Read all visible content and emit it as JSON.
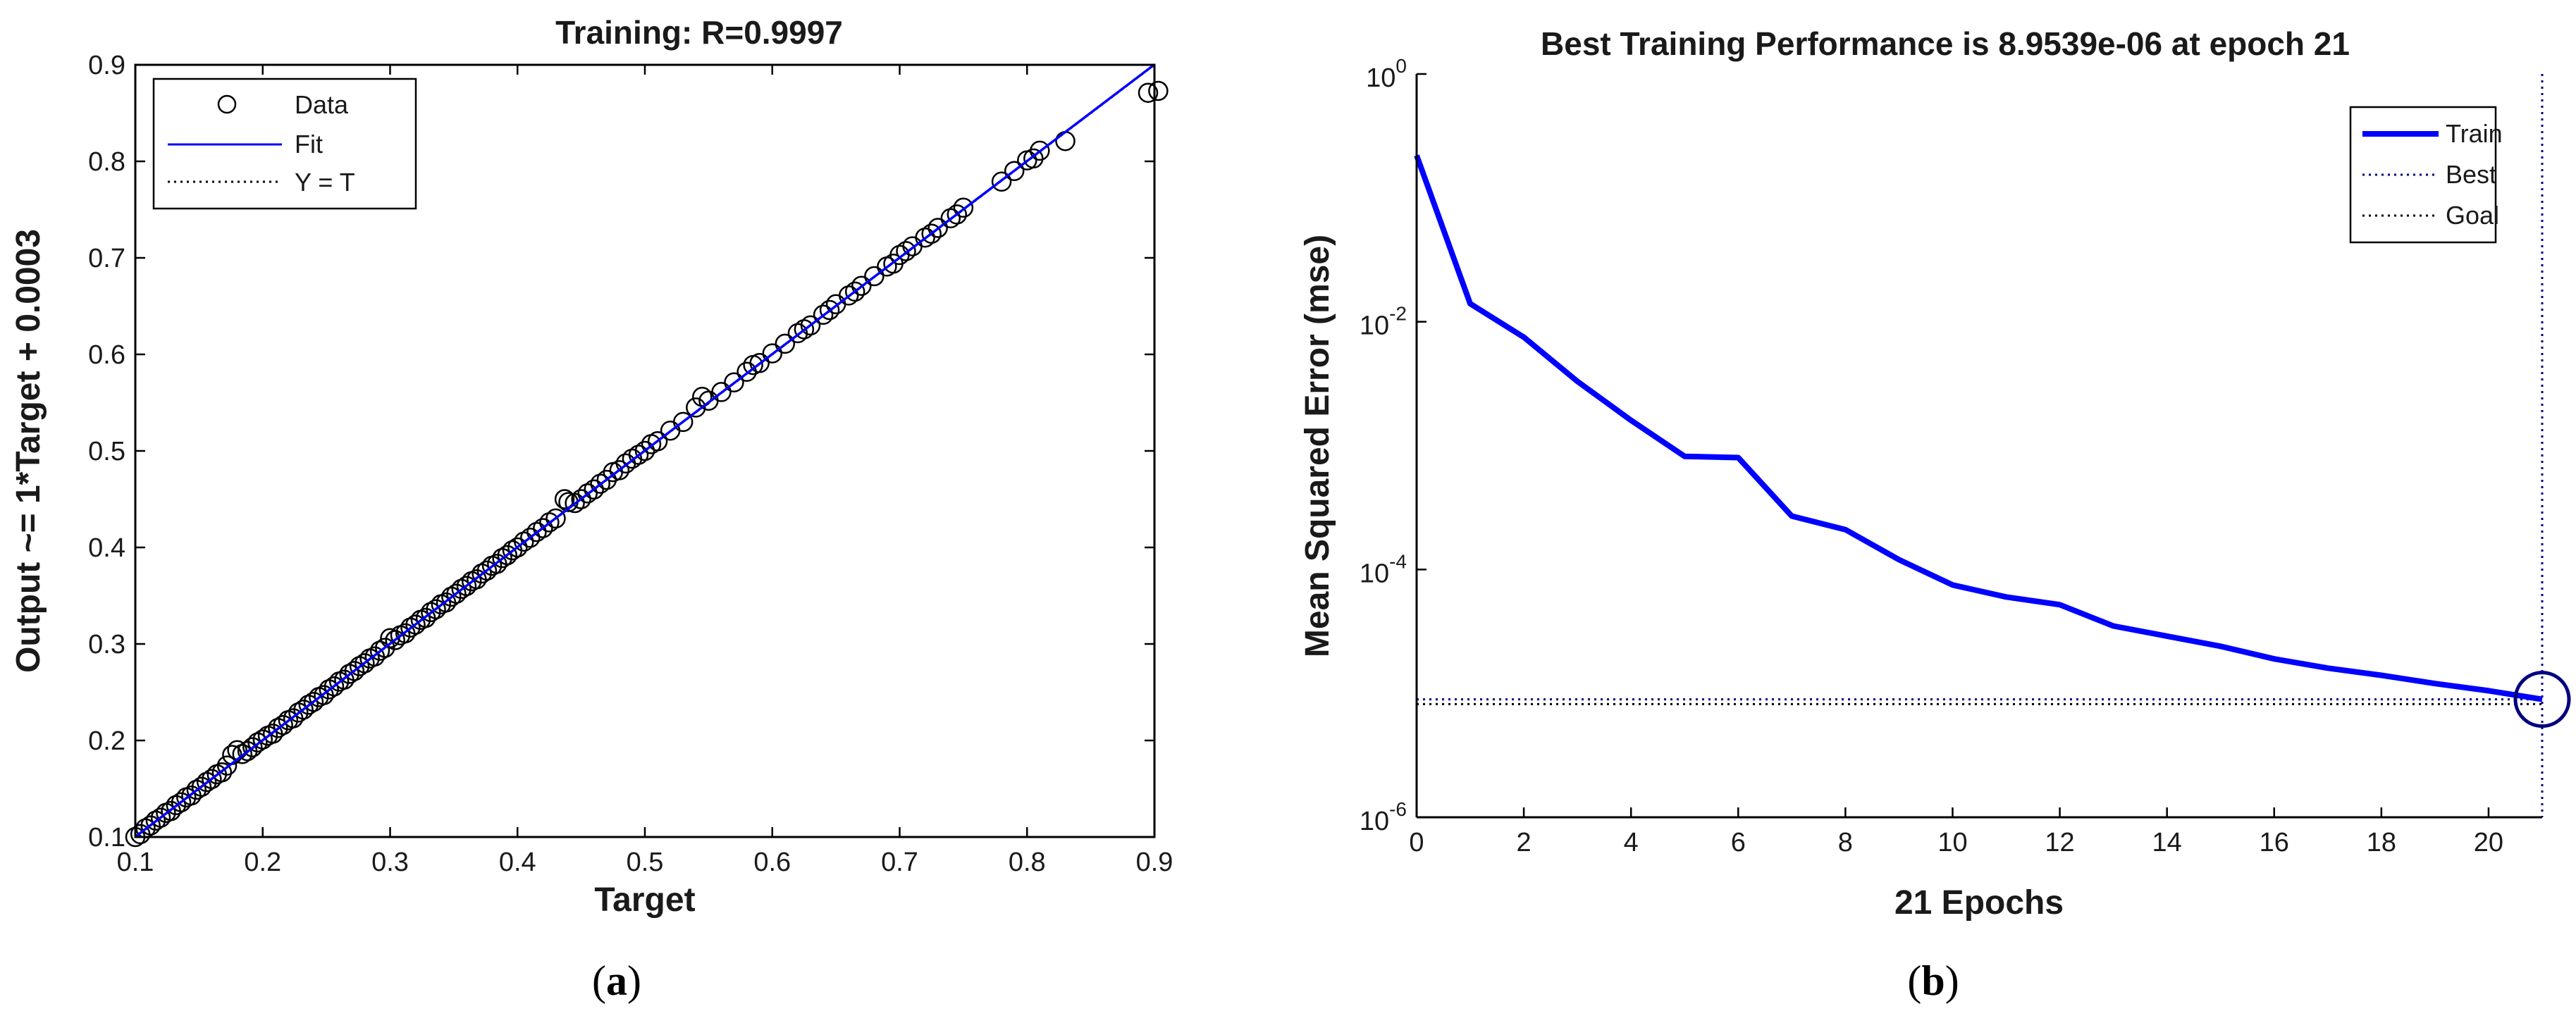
{
  "chart_data": [
    {
      "type": "scatter",
      "title": "Training: R=0.9997",
      "xlabel": "Target",
      "ylabel": "Output ~= 1*Target + 0.0003",
      "xlim": [
        0.1,
        0.9
      ],
      "ylim": [
        0.1,
        0.9
      ],
      "xticks": [
        "0.1",
        "0.2",
        "0.3",
        "0.4",
        "0.5",
        "0.6",
        "0.7",
        "0.8",
        "0.9"
      ],
      "yticks": [
        "0.1",
        "0.2",
        "0.3",
        "0.4",
        "0.5",
        "0.6",
        "0.7",
        "0.8",
        "0.9"
      ],
      "grid": false,
      "legend_position": "top-left",
      "legend": [
        "Data",
        "Fit",
        "Y = T"
      ],
      "fit": {
        "slope": 1,
        "intercept": 0.0003
      },
      "colors": {
        "data": "#000000",
        "fit": "#0000ff",
        "ident": "#000000"
      },
      "data_points": [
        [
          0.1,
          0.1
        ],
        [
          0.104,
          0.103
        ],
        [
          0.108,
          0.109
        ],
        [
          0.112,
          0.112
        ],
        [
          0.116,
          0.117
        ],
        [
          0.12,
          0.12
        ],
        [
          0.124,
          0.125
        ],
        [
          0.128,
          0.127
        ],
        [
          0.132,
          0.133
        ],
        [
          0.136,
          0.136
        ],
        [
          0.14,
          0.141
        ],
        [
          0.144,
          0.143
        ],
        [
          0.148,
          0.149
        ],
        [
          0.152,
          0.152
        ],
        [
          0.156,
          0.157
        ],
        [
          0.16,
          0.16
        ],
        [
          0.164,
          0.165
        ],
        [
          0.168,
          0.167
        ],
        [
          0.172,
          0.174
        ],
        [
          0.176,
          0.185
        ],
        [
          0.18,
          0.19
        ],
        [
          0.184,
          0.186
        ],
        [
          0.188,
          0.189
        ],
        [
          0.192,
          0.193
        ],
        [
          0.196,
          0.198
        ],
        [
          0.2,
          0.201
        ],
        [
          0.204,
          0.205
        ],
        [
          0.208,
          0.207
        ],
        [
          0.212,
          0.213
        ],
        [
          0.216,
          0.216
        ],
        [
          0.22,
          0.221
        ],
        [
          0.224,
          0.223
        ],
        [
          0.228,
          0.229
        ],
        [
          0.232,
          0.232
        ],
        [
          0.236,
          0.237
        ],
        [
          0.24,
          0.24
        ],
        [
          0.244,
          0.245
        ],
        [
          0.248,
          0.247
        ],
        [
          0.252,
          0.253
        ],
        [
          0.256,
          0.256
        ],
        [
          0.26,
          0.261
        ],
        [
          0.264,
          0.263
        ],
        [
          0.268,
          0.269
        ],
        [
          0.272,
          0.272
        ],
        [
          0.276,
          0.277
        ],
        [
          0.28,
          0.28
        ],
        [
          0.284,
          0.285
        ],
        [
          0.288,
          0.287
        ],
        [
          0.292,
          0.293
        ],
        [
          0.296,
          0.296
        ],
        [
          0.3,
          0.306
        ],
        [
          0.304,
          0.304
        ],
        [
          0.308,
          0.309
        ],
        [
          0.312,
          0.311
        ],
        [
          0.316,
          0.317
        ],
        [
          0.32,
          0.32
        ],
        [
          0.324,
          0.325
        ],
        [
          0.328,
          0.327
        ],
        [
          0.332,
          0.333
        ],
        [
          0.336,
          0.336
        ],
        [
          0.34,
          0.341
        ],
        [
          0.344,
          0.343
        ],
        [
          0.348,
          0.349
        ],
        [
          0.352,
          0.352
        ],
        [
          0.356,
          0.357
        ],
        [
          0.36,
          0.36
        ],
        [
          0.364,
          0.365
        ],
        [
          0.368,
          0.367
        ],
        [
          0.372,
          0.373
        ],
        [
          0.376,
          0.376
        ],
        [
          0.38,
          0.381
        ],
        [
          0.384,
          0.383
        ],
        [
          0.388,
          0.389
        ],
        [
          0.392,
          0.392
        ],
        [
          0.396,
          0.397
        ],
        [
          0.4,
          0.4
        ],
        [
          0.405,
          0.406
        ],
        [
          0.41,
          0.41
        ],
        [
          0.415,
          0.416
        ],
        [
          0.42,
          0.42
        ],
        [
          0.425,
          0.426
        ],
        [
          0.43,
          0.43
        ],
        [
          0.437,
          0.45
        ],
        [
          0.44,
          0.447
        ],
        [
          0.445,
          0.446
        ],
        [
          0.45,
          0.45
        ],
        [
          0.455,
          0.456
        ],
        [
          0.46,
          0.46
        ],
        [
          0.465,
          0.466
        ],
        [
          0.47,
          0.47
        ],
        [
          0.475,
          0.478
        ],
        [
          0.48,
          0.48
        ],
        [
          0.485,
          0.487
        ],
        [
          0.49,
          0.492
        ],
        [
          0.495,
          0.496
        ],
        [
          0.5,
          0.5
        ],
        [
          0.505,
          0.507
        ],
        [
          0.51,
          0.51
        ],
        [
          0.52,
          0.521
        ],
        [
          0.53,
          0.53
        ],
        [
          0.54,
          0.545
        ],
        [
          0.545,
          0.556
        ],
        [
          0.55,
          0.552
        ],
        [
          0.56,
          0.561
        ],
        [
          0.57,
          0.571
        ],
        [
          0.58,
          0.582
        ],
        [
          0.585,
          0.589
        ],
        [
          0.59,
          0.591
        ],
        [
          0.6,
          0.601
        ],
        [
          0.61,
          0.611
        ],
        [
          0.62,
          0.622
        ],
        [
          0.625,
          0.626
        ],
        [
          0.63,
          0.63
        ],
        [
          0.64,
          0.641
        ],
        [
          0.645,
          0.646
        ],
        [
          0.65,
          0.652
        ],
        [
          0.66,
          0.661
        ],
        [
          0.665,
          0.665
        ],
        [
          0.67,
          0.671
        ],
        [
          0.68,
          0.681
        ],
        [
          0.69,
          0.691
        ],
        [
          0.695,
          0.694
        ],
        [
          0.7,
          0.703
        ],
        [
          0.705,
          0.707
        ],
        [
          0.71,
          0.712
        ],
        [
          0.72,
          0.721
        ],
        [
          0.725,
          0.725
        ],
        [
          0.73,
          0.731
        ],
        [
          0.74,
          0.741
        ],
        [
          0.745,
          0.745
        ],
        [
          0.75,
          0.752
        ],
        [
          0.78,
          0.779
        ],
        [
          0.79,
          0.79
        ],
        [
          0.8,
          0.801
        ],
        [
          0.805,
          0.803
        ],
        [
          0.81,
          0.811
        ],
        [
          0.83,
          0.821
        ],
        [
          0.895,
          0.871
        ],
        [
          0.903,
          0.873
        ]
      ]
    },
    {
      "type": "line",
      "title": "Best Training Performance is 8.9539e-06 at epoch 21",
      "xlabel": "21 Epochs",
      "ylabel": "Mean Squared Error  (mse)",
      "xlim": [
        0,
        21
      ],
      "ylim": [
        1e-06,
        1
      ],
      "yscale": "log",
      "xticks": [
        "0",
        "2",
        "4",
        "6",
        "8",
        "10",
        "12",
        "14",
        "16",
        "18",
        "20"
      ],
      "yticks": [
        {
          "base": "10",
          "exp": "0",
          "value": 1
        },
        {
          "base": "10",
          "exp": "-2",
          "value": 0.01
        },
        {
          "base": "10",
          "exp": "-4",
          "value": 0.0001
        },
        {
          "base": "10",
          "exp": "-6",
          "value": 1e-06
        }
      ],
      "grid": false,
      "legend_position": "top-right",
      "legend": [
        "Train",
        "Best",
        "Goal"
      ],
      "colors": {
        "train": "#0000ff",
        "best": "#00007f",
        "goal": "#000000"
      },
      "series": [
        {
          "name": "Train",
          "x": [
            0,
            1,
            2,
            3,
            4,
            5,
            6,
            7,
            8,
            9,
            10,
            11,
            12,
            13,
            14,
            15,
            16,
            17,
            18,
            19,
            20,
            21
          ],
          "values": [
            0.22,
            0.014,
            0.0075,
            0.0033,
            0.0016,
            0.00082,
            0.0008,
            0.00027,
            0.00021,
            0.00012,
            7.5e-05,
            6e-05,
            5.2e-05,
            3.5e-05,
            2.9e-05,
            2.4e-05,
            1.9e-05,
            1.6e-05,
            1.4e-05,
            1.2e-05,
            1.05e-05,
            8.9539e-06
          ]
        }
      ],
      "best": {
        "epoch": 21,
        "value": 8.9539e-06
      },
      "goal": 8.2e-06
    }
  ],
  "captions": {
    "a": "a",
    "b": "b"
  }
}
